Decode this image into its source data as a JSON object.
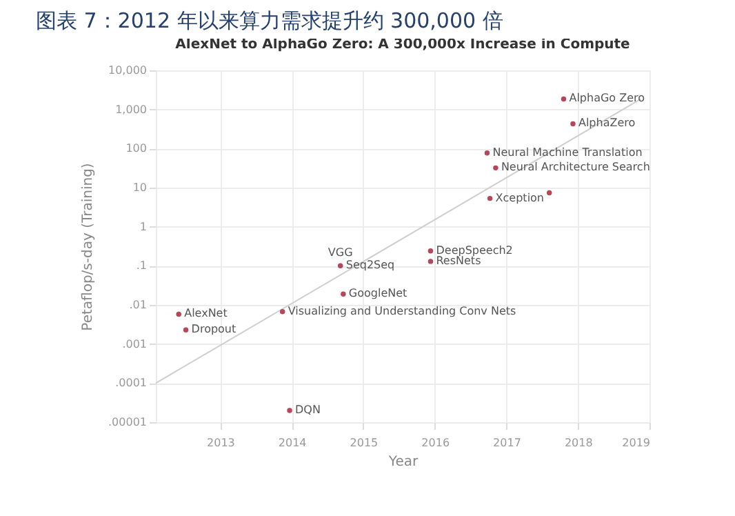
{
  "chart_data": {
    "type": "scatter",
    "title": "图表 7：2012 年以来算力需求提升约 300,000 倍",
    "subtitle": "AlexNet to AlphaGo Zero: A 300,000x Increase in Compute",
    "xlabel": "Year",
    "ylabel": "Petaflop/s-day (Training)",
    "series": [
      {
        "marker": "circle",
        "color": "#b5475b",
        "x": [
          2012.42,
          2012.52,
          2013.87,
          2013.97,
          2014.68,
          2014.72,
          2015.94,
          2015.94,
          2016.73,
          2016.77,
          2016.85,
          2017.6,
          2017.8,
          2017.93
        ],
        "values": [
          0.0058,
          0.0023,
          0.0067,
          2e-05,
          0.1,
          0.019,
          0.24,
          0.13,
          77,
          5.3,
          32,
          7.4,
          1860,
          430
        ]
      },
      {
        "type": "line",
        "marker": "none",
        "color": "#cfcfcf",
        "x": [
          2012.1,
          2018.88
        ],
        "values": [
          0.0001,
          1860
        ]
      }
    ],
    "annotations": [
      {
        "text": "AlexNet",
        "x": 2012.42,
        "y": 0.0058
      },
      {
        "text": "Dropout",
        "x": 2012.52,
        "y": 0.0023
      },
      {
        "text": "Visualizing and Understanding Conv Nets",
        "x": 2013.87,
        "y": 0.0067
      },
      {
        "text": "DQN",
        "x": 2013.97,
        "y": 2e-05
      },
      {
        "text": "VGG",
        "x": 2014.68,
        "y": 0.1
      },
      {
        "text": "Seq2Seq",
        "x": 2014.68,
        "y": 0.1
      },
      {
        "text": "GoogleNet",
        "x": 2014.72,
        "y": 0.019
      },
      {
        "text": "DeepSpeech2",
        "x": 2015.94,
        "y": 0.24
      },
      {
        "text": "ResNets",
        "x": 2015.94,
        "y": 0.13
      },
      {
        "text": "Neural Machine Translation",
        "x": 2016.73,
        "y": 77
      },
      {
        "text": "Xception",
        "x": 2016.77,
        "y": 5.3
      },
      {
        "text": "Neural Architecture Search",
        "x": 2016.85,
        "y": 32
      },
      {
        "text": "AlphaGo Zero",
        "x": 2017.8,
        "y": 1860
      },
      {
        "text": "AlphaZero",
        "x": 2017.93,
        "y": 430
      }
    ],
    "xlim": [
      2012.1,
      2019
    ],
    "xticks": [
      2013,
      2014,
      2015,
      2016,
      2017,
      2018,
      2019
    ],
    "ylim": [
      1e-05,
      10000
    ],
    "yticks": [
      {
        "value": 1e-05,
        "label": ".00001"
      },
      {
        "value": 0.0001,
        "label": ".0001"
      },
      {
        "value": 0.001,
        "label": ".001"
      },
      {
        "value": 0.01,
        "label": ".01"
      },
      {
        "value": 0.1,
        "label": ".1"
      },
      1,
      10,
      100,
      {
        "value": 1000,
        "label": "1,000"
      },
      {
        "value": 10000,
        "label": "10,000"
      }
    ],
    "log": "y",
    "grid": true
  }
}
